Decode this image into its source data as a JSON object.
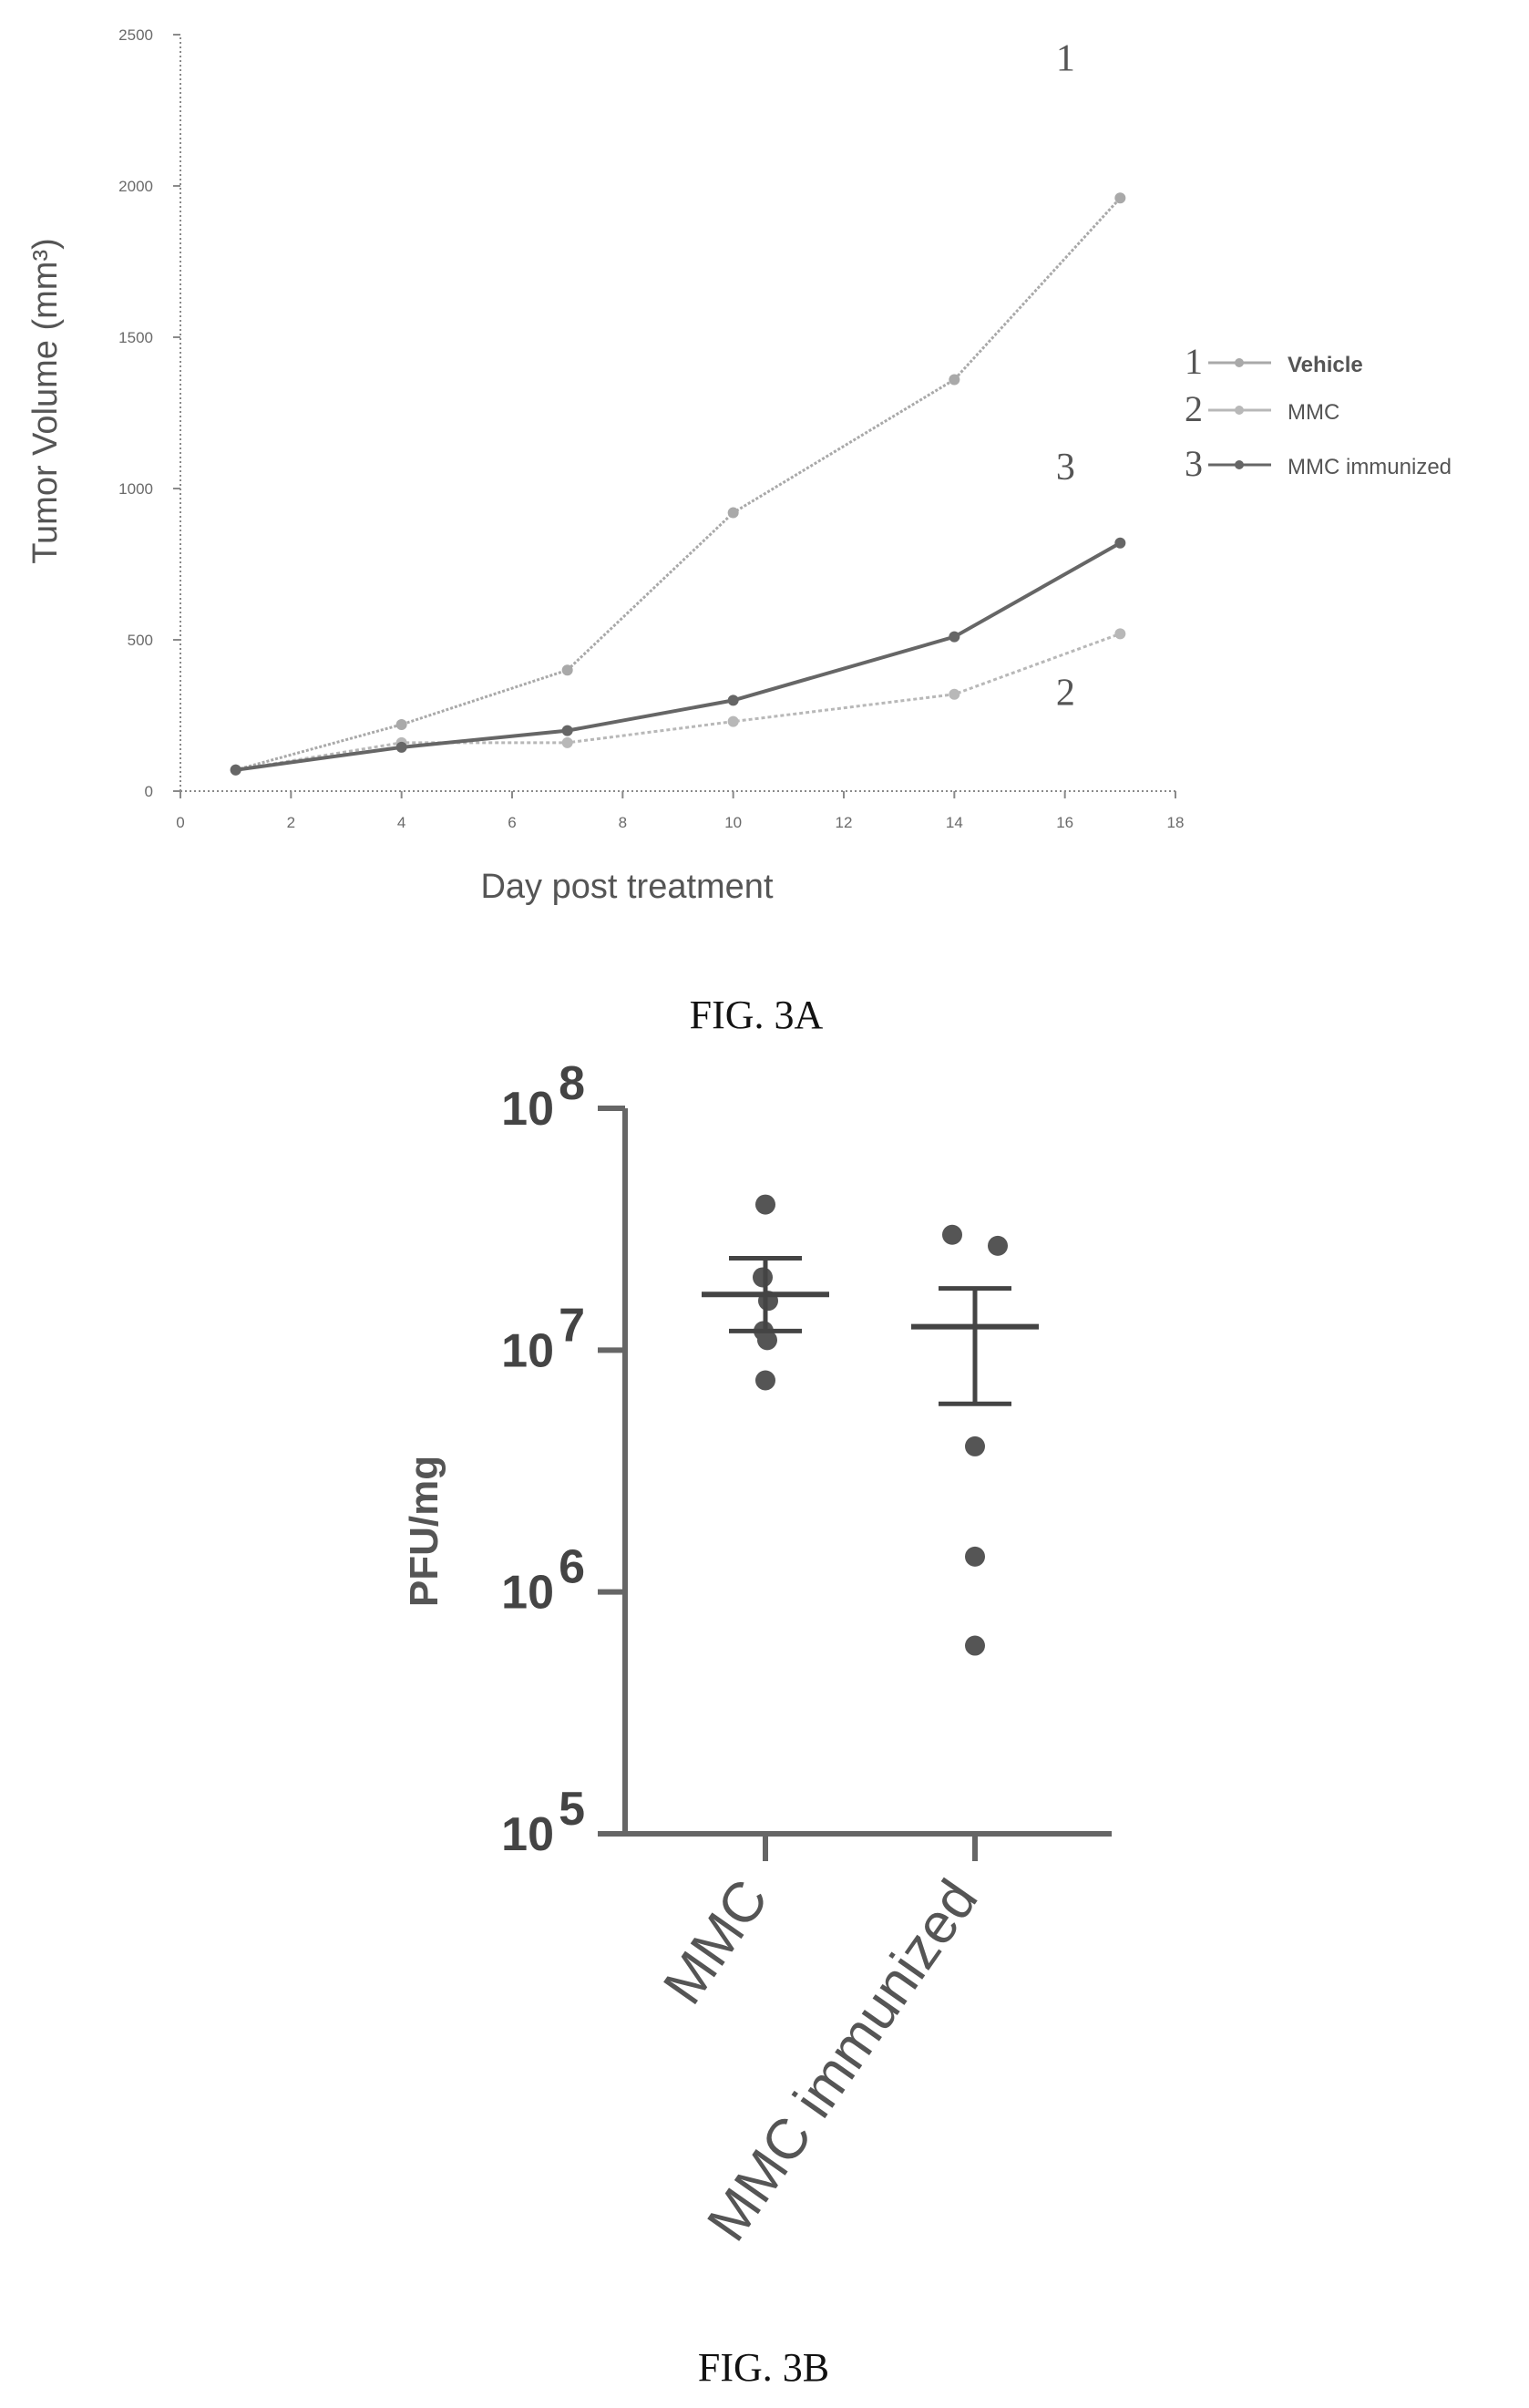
{
  "chart_data": [
    {
      "type": "line",
      "xlabel": "Day post treatment",
      "ylabel": "Tumor Volume (mm³)",
      "x": [
        1,
        4,
        7,
        10,
        14,
        17
      ],
      "xlim": [
        0,
        18
      ],
      "ylim": [
        0,
        2500
      ],
      "xticks": [
        "0",
        "2",
        "4",
        "6",
        "8",
        "10",
        "12",
        "14",
        "16",
        "18"
      ],
      "yticks": [
        "0",
        "500",
        "1000",
        "1500",
        "2000",
        "2500"
      ],
      "series": [
        {
          "name": "Vehicle",
          "number": "1",
          "color": "#a9a9a9",
          "values": [
            70,
            220,
            400,
            920,
            1360,
            1960
          ]
        },
        {
          "name": "MMC",
          "number": "2",
          "color": "#b8b8b8",
          "values": [
            70,
            160,
            160,
            230,
            320,
            520
          ]
        },
        {
          "name": "MMC immunized",
          "number": "3",
          "color": "#666666",
          "values": [
            70,
            145,
            200,
            300,
            510,
            820
          ]
        }
      ],
      "legend_position": "right",
      "caption": "FIG. 3A"
    },
    {
      "type": "scatter",
      "ylabel": "PFU/mg",
      "y_scale": "log",
      "ylim": [
        100000,
        100000000
      ],
      "ytick_base": "10",
      "ytick_exponents": [
        "5",
        "6",
        "7",
        "8"
      ],
      "categories": [
        "MMC",
        "MMC immunized"
      ],
      "points": [
        {
          "category": "MMC",
          "values": [
            40000000,
            20000000,
            16000000,
            12000000,
            11000000,
            7500000
          ]
        },
        {
          "category": "MMC immunized",
          "values": [
            30000000,
            27000000,
            4000000,
            1400000,
            600000
          ]
        }
      ],
      "mean_sem": [
        {
          "category": "MMC",
          "mean": 17000000,
          "upper": 24000000,
          "lower": 12000000
        },
        {
          "category": "MMC immunized",
          "mean": 12500000,
          "upper": 18000000,
          "lower": 6000000
        }
      ],
      "caption": "FIG. 3B"
    }
  ]
}
